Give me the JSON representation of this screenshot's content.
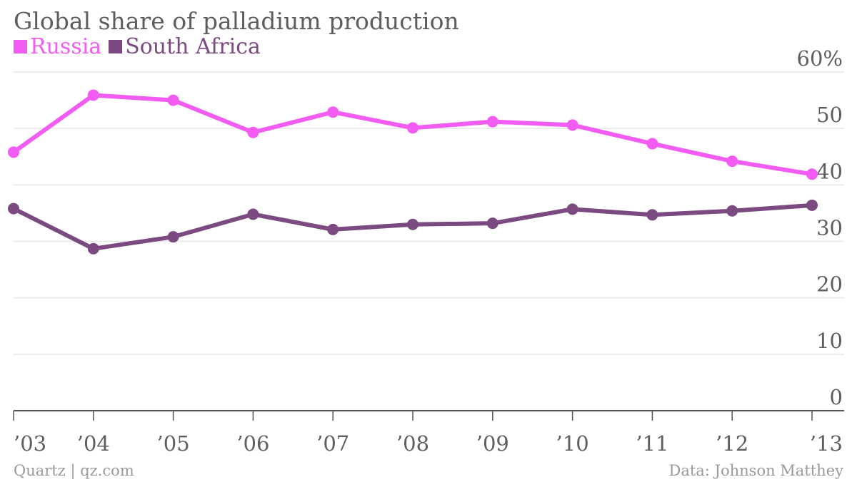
{
  "colors": {
    "russia": "#f25cf2",
    "south_africa": "#7a4a80",
    "grid": "#e6e6e6",
    "axis": "#555555",
    "text": "#5e5e5e"
  },
  "footer": {
    "source_left": "Quartz | qz.com",
    "source_right": "Data: Johnson Matthey"
  },
  "chart_data": {
    "type": "line",
    "title": "Global share of palladium production",
    "categories": [
      "’03",
      "’04",
      "’05",
      "’06",
      "’07",
      "’08",
      "’09",
      "’10",
      "’11",
      "’12",
      "’13"
    ],
    "series": [
      {
        "name": "Russia",
        "color": "#f25cf2",
        "values": [
          45.8,
          55.9,
          55.0,
          49.3,
          52.9,
          50.1,
          51.2,
          50.6,
          47.3,
          44.2,
          41.9
        ]
      },
      {
        "name": "South Africa",
        "color": "#7a4a80",
        "values": [
          35.8,
          28.7,
          30.8,
          34.8,
          32.1,
          33.0,
          33.2,
          35.7,
          34.7,
          35.4,
          36.4
        ]
      }
    ],
    "y_ticks": [
      "60%",
      "50",
      "40",
      "30",
      "20",
      "10",
      "0"
    ],
    "ylim": [
      0,
      60
    ],
    "grid": true,
    "legend": "top-left"
  }
}
